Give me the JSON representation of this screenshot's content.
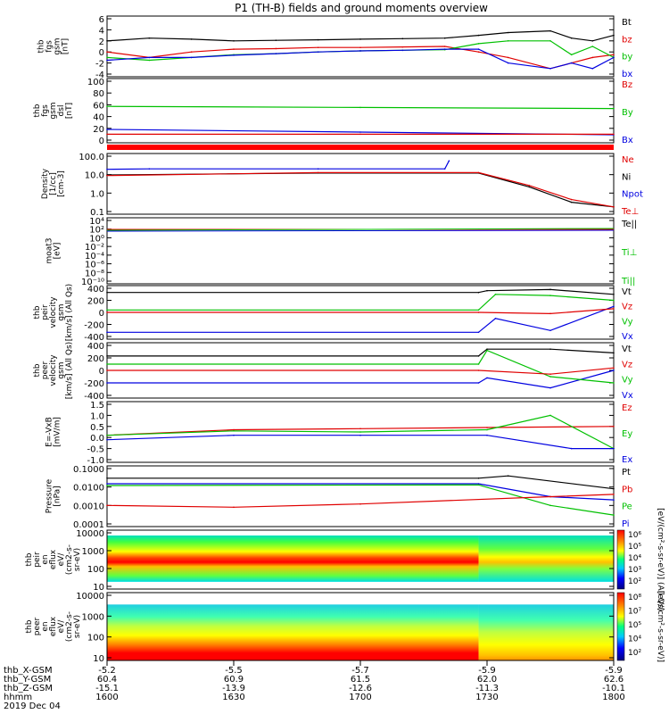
{
  "title": "P1 (TH-B) fields and ground moments overview",
  "panels": [
    {
      "id": "fgs-gsm",
      "ylabel": [
        "thb",
        "fgs",
        "gsm",
        "[nT]"
      ],
      "yticks": [
        "6",
        "4",
        "2",
        "0",
        "-2",
        "-4"
      ],
      "legend": [
        {
          "label": "Bt",
          "color": "#000000"
        },
        {
          "label": "bz",
          "color": "#e00000"
        },
        {
          "label": "by",
          "color": "#00c000"
        },
        {
          "label": "bx",
          "color": "#0000e0"
        }
      ]
    },
    {
      "id": "fgs-gsm-dsl",
      "ylabel": [
        "thb",
        "fgs",
        "gsm",
        "dsl",
        "[nT]"
      ],
      "yticks": [
        "100",
        "80",
        "60",
        "40",
        "20",
        "0"
      ],
      "legend": [
        {
          "label": "Bz",
          "color": "#e00000"
        },
        {
          "label": "By",
          "color": "#00c000"
        },
        {
          "label": "Bx",
          "color": "#0000e0"
        }
      ]
    },
    {
      "id": "density",
      "ylabel": [
        "Density",
        "[1/cc]",
        "[cm-3]"
      ],
      "yticks": [
        "100.0",
        "10.0",
        "1.0",
        "0.1"
      ],
      "legend": [
        {
          "label": "Ne",
          "color": "#e00000"
        },
        {
          "label": "Ni",
          "color": "#000000"
        },
        {
          "label": "Npot",
          "color": "#0000e0"
        },
        {
          "label": "Te⊥",
          "color": "#e00000"
        }
      ]
    },
    {
      "id": "moat3",
      "ylabel": [
        "moat3",
        "[eV]"
      ],
      "yticks": [
        "10⁴",
        "10²",
        "10⁰",
        "10⁻²",
        "10⁻⁴",
        "10⁻⁶",
        "10⁻⁸",
        "10⁻¹⁰"
      ],
      "legend": [
        {
          "label": "Te||",
          "color": "#000000"
        },
        {
          "label": "Ti⊥",
          "color": "#00c000"
        },
        {
          "label": "Ti||",
          "color": "#00c000"
        }
      ]
    },
    {
      "id": "peir-velocity",
      "ylabel": [
        "thb",
        "peir",
        "velocity",
        "gsm",
        "[km/s] (All Qs)"
      ],
      "yticks": [
        "400",
        "200",
        "0",
        "-200",
        "-400"
      ],
      "legend": [
        {
          "label": "Vt",
          "color": "#000000"
        },
        {
          "label": "Vz",
          "color": "#e00000"
        },
        {
          "label": "Vy",
          "color": "#00c000"
        },
        {
          "label": "Vx",
          "color": "#0000e0"
        }
      ]
    },
    {
      "id": "peer-velocity",
      "ylabel": [
        "thb",
        "peer",
        "velocity",
        "gsm",
        "[km/s] (All Qs)"
      ],
      "yticks": [
        "400",
        "200",
        "0",
        "-200",
        "-400"
      ],
      "legend": [
        {
          "label": "Vt",
          "color": "#000000"
        },
        {
          "label": "Vz",
          "color": "#e00000"
        },
        {
          "label": "Vy",
          "color": "#00c000"
        },
        {
          "label": "Vx",
          "color": "#0000e0"
        }
      ]
    },
    {
      "id": "efield",
      "ylabel": [
        "E=-VxB",
        "[mV/m]"
      ],
      "yticks": [
        "1.5",
        "1.0",
        "0.5",
        "0.0",
        "-0.5",
        "-1.0"
      ],
      "legend": [
        {
          "label": "Ez",
          "color": "#e00000"
        },
        {
          "label": "Ey",
          "color": "#00c000"
        },
        {
          "label": "Ex",
          "color": "#0000e0"
        }
      ]
    },
    {
      "id": "pressure",
      "ylabel": [
        "Pressure",
        "[nPa]"
      ],
      "yticks": [
        "0.1000",
        "0.0100",
        "0.0010",
        "0.0001"
      ],
      "legend": [
        {
          "label": "Pt",
          "color": "#000000"
        },
        {
          "label": "Pb",
          "color": "#e00000"
        },
        {
          "label": "Pe",
          "color": "#00c000"
        },
        {
          "label": "Pi",
          "color": "#0000e0"
        }
      ]
    },
    {
      "id": "peir-en-eflux",
      "ylabel": [
        "thb",
        "peir",
        "en",
        "eflux",
        "eV/",
        "(cm2-s-",
        "sr-eV)"
      ],
      "yticks": [
        "10000",
        "1000",
        "100",
        "10"
      ]
    },
    {
      "id": "peer-en-eflux",
      "ylabel": [
        "thb",
        "peer",
        "en",
        "eflux",
        "eV/",
        "(cm2-s-",
        "sr-eV)"
      ],
      "yticks": [
        "10000",
        "1000",
        "100",
        "10"
      ]
    }
  ],
  "colorbars": [
    {
      "ticks": [
        "10⁶",
        "10⁵",
        "10⁴",
        "10³",
        "10²"
      ],
      "label": "[eV/(cm²-s-sr-eV)] (All Qs)"
    },
    {
      "ticks": [
        "10⁸",
        "10⁷",
        "10⁵",
        "10⁴",
        "10²"
      ],
      "label": "[eV/(cm²-s-sr-eV)]"
    }
  ],
  "bottom_axis": {
    "row_labels": [
      "thb_X-GSM",
      "thb_Y-GSM",
      "thb_Z-GSM",
      "hhmm",
      "2019 Dec 04"
    ],
    "columns": [
      [
        "-5.2",
        "60.4",
        "-15.1",
        "1600"
      ],
      [
        "-5.5",
        "60.9",
        "-13.9",
        "1630"
      ],
      [
        "-5.7",
        "61.5",
        "-12.6",
        "1700"
      ],
      [
        "-5.9",
        "62.0",
        "-11.3",
        "1730"
      ],
      [
        "-5.9",
        "62.6",
        "-10.1",
        "1800"
      ]
    ]
  },
  "chart_data": {
    "type": "line",
    "title": "P1 (TH-B) fields and ground moments overview",
    "x_label": "hhmm",
    "x_ticks": [
      "1600",
      "1630",
      "1700",
      "1730",
      "1800"
    ],
    "date": "2019 Dec 04",
    "panels": [
      {
        "name": "thb fgs gsm [nT]",
        "ylim": [
          -4,
          6
        ],
        "series": [
          {
            "name": "Bt",
            "x": [
              1600,
              1610,
              1620,
              1630,
              1640,
              1650,
              1700,
              1710,
              1720,
              1728,
              1735,
              1745,
              1750,
              1755,
              1800
            ],
            "values": [
              2,
              2.5,
              2.3,
              2,
              2.1,
              2.2,
              2.3,
              2.4,
              2.5,
              3,
              3.5,
              3.8,
              2.5,
              2,
              3
            ]
          },
          {
            "name": "bz",
            "x": [
              1600,
              1610,
              1620,
              1630,
              1640,
              1650,
              1700,
              1710,
              1720,
              1728,
              1735,
              1745,
              1750,
              1755,
              1800
            ],
            "values": [
              0,
              -1,
              0,
              0.5,
              0.6,
              0.8,
              0.8,
              0.9,
              1.0,
              0,
              -1,
              -3,
              -2,
              -1,
              -0.5
            ]
          },
          {
            "name": "by",
            "x": [
              1600,
              1610,
              1620,
              1630,
              1640,
              1650,
              1700,
              1710,
              1720,
              1728,
              1735,
              1745,
              1750,
              1755,
              1800
            ],
            "values": [
              -1,
              -1.5,
              -1,
              -0.5,
              -0.3,
              0,
              0.2,
              0.3,
              0.4,
              1.5,
              2,
              2,
              -0.5,
              1,
              -1
            ]
          },
          {
            "name": "bx",
            "x": [
              1600,
              1610,
              1620,
              1630,
              1640,
              1650,
              1700,
              1710,
              1720,
              1728,
              1735,
              1745,
              1750,
              1755,
              1800
            ],
            "values": [
              -1.5,
              -1,
              -1,
              -0.6,
              -0.3,
              0,
              0.2,
              0.3,
              0.5,
              0.5,
              -2,
              -3,
              -2,
              -3,
              -1
            ]
          }
        ]
      },
      {
        "name": "thb fgs gsm dsl [nT]",
        "ylim": [
          -10,
          100
        ],
        "series": [
          {
            "name": "By",
            "x": [
              1600,
              1700,
              1800
            ],
            "values": [
              53,
              51,
              49
            ]
          },
          {
            "name": "Bx",
            "x": [
              1600,
              1700,
              1800
            ],
            "values": [
              10,
              5,
              0
            ]
          },
          {
            "name": "Bz",
            "x": [
              1600,
              1700,
              1800
            ],
            "values": [
              1,
              1,
              1
            ]
          }
        ]
      },
      {
        "name": "Density [cm-3]",
        "ylim": [
          0.05,
          200
        ],
        "scale": "log",
        "series": [
          {
            "name": "Npot",
            "x": [
              1600,
              1610,
              1650,
              1720,
              1721
            ],
            "values": [
              28,
              30,
              30,
              30,
              100
            ]
          },
          {
            "name": "Ni",
            "x": [
              1600,
              1650,
              1728,
              1740,
              1750,
              1800
            ],
            "values": [
              12,
              16,
              16,
              2,
              0.2,
              0.1
            ]
          },
          {
            "name": "Ne",
            "x": [
              1600,
              1650,
              1728,
              1740,
              1750,
              1800
            ],
            "values": [
              11,
              17,
              17,
              2.5,
              0.3,
              0.1
            ]
          }
        ]
      },
      {
        "name": "thb peir velocity gsm [km/s]",
        "ylim": [
          -400,
          400
        ],
        "series": [
          {
            "name": "Vt",
            "x": [
              1600,
              1728,
              1730,
              1745,
              1800
            ],
            "values": [
              330,
              330,
              360,
              380,
              300
            ]
          },
          {
            "name": "Vx",
            "x": [
              1600,
              1728,
              1732,
              1745,
              1800
            ],
            "values": [
              -330,
              -330,
              -100,
              -300,
              100
            ]
          },
          {
            "name": "Vy",
            "x": [
              1600,
              1728,
              1732,
              1745,
              1800
            ],
            "values": [
              40,
              40,
              300,
              280,
              200
            ]
          },
          {
            "name": "Vz",
            "x": [
              1600,
              1728,
              1745,
              1800
            ],
            "values": [
              0,
              0,
              -20,
              60
            ]
          }
        ]
      },
      {
        "name": "thb peer velocity gsm [km/s]",
        "ylim": [
          -400,
          400
        ],
        "series": [
          {
            "name": "Vt",
            "x": [
              1600,
              1728,
              1730,
              1745,
              1800
            ],
            "values": [
              230,
              230,
              340,
              340,
              280
            ]
          },
          {
            "name": "Vx",
            "x": [
              1600,
              1728,
              1730,
              1745,
              1800
            ],
            "values": [
              -200,
              -200,
              -120,
              -280,
              0
            ]
          },
          {
            "name": "Vy",
            "x": [
              1600,
              1728,
              1730,
              1745,
              1800
            ],
            "values": [
              100,
              100,
              320,
              -100,
              -200
            ]
          },
          {
            "name": "Vz",
            "x": [
              1600,
              1728,
              1745,
              1800
            ],
            "values": [
              0,
              0,
              -60,
              40
            ]
          }
        ]
      },
      {
        "name": "E=-VxB [mV/m]",
        "ylim": [
          -1,
          1.5
        ],
        "series": [
          {
            "name": "Ez",
            "x": [
              1600,
              1630,
              1700,
              1730,
              1800
            ],
            "values": [
              0.1,
              0.35,
              0.4,
              0.45,
              0.5
            ]
          },
          {
            "name": "Ey",
            "x": [
              1600,
              1630,
              1700,
              1730,
              1745,
              1800
            ],
            "values": [
              0.1,
              0.3,
              0.25,
              0.35,
              1.0,
              -0.5
            ]
          },
          {
            "name": "Ex",
            "x": [
              1600,
              1630,
              1700,
              1730,
              1750,
              1800
            ],
            "values": [
              -0.1,
              0.1,
              0.1,
              0.1,
              -0.5,
              -0.5
            ]
          }
        ]
      },
      {
        "name": "Pressure [nPa]",
        "ylim": [
          0.0001,
          0.1
        ],
        "scale": "log",
        "series": [
          {
            "name": "Pt",
            "x": [
              1600,
              1728,
              1735,
              1800
            ],
            "values": [
              0.03,
              0.03,
              0.04,
              0.008
            ]
          },
          {
            "name": "Pi",
            "x": [
              1600,
              1728,
              1745,
              1800
            ],
            "values": [
              0.015,
              0.015,
              0.003,
              0.002
            ]
          },
          {
            "name": "Pe",
            "x": [
              1600,
              1728,
              1745,
              1800
            ],
            "values": [
              0.012,
              0.013,
              0.001,
              0.0003
            ]
          },
          {
            "name": "Pb",
            "x": [
              1600,
              1630,
              1700,
              1745,
              1800
            ],
            "values": [
              0.001,
              0.0008,
              0.0012,
              0.003,
              0.004
            ]
          }
        ]
      }
    ]
  }
}
